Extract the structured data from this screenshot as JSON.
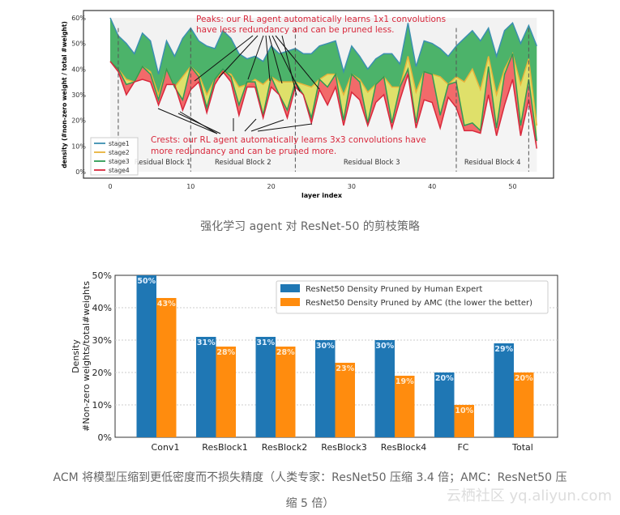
{
  "chart_data": [
    {
      "type": "area",
      "title": "",
      "xlabel": "layer index",
      "ylabel": "density (#non-zero weight / total #weight)",
      "xlim": [
        0,
        53
      ],
      "ylim": [
        0,
        60
      ],
      "xticks": [
        "0",
        "10",
        "20",
        "30",
        "40",
        "50"
      ],
      "yticks": [
        "0%",
        "10%",
        "20%",
        "30%",
        "40%",
        "50%",
        "60%"
      ],
      "legend": {
        "placement": "bottom-left",
        "entries": [
          "stage1",
          "stage2",
          "stage3",
          "stage4"
        ]
      },
      "colors": {
        "stage1": "#3b8fb0",
        "stage2": "#e8b33a",
        "stage3": "#2f9b54",
        "stage4": "#d8283c",
        "fill_green": "#4cb36a",
        "fill_yellow": "#dfe06a",
        "fill_red": "#f26a6a"
      },
      "series": [
        {
          "name": "stage1",
          "values": [
            60,
            53,
            50,
            46,
            54,
            51,
            38,
            51,
            45,
            52,
            56,
            51,
            49,
            48,
            55,
            52,
            46,
            44,
            45,
            43,
            49,
            46,
            47,
            48,
            46,
            46,
            49,
            50,
            51,
            39,
            49,
            45,
            40,
            44,
            46,
            46,
            42,
            58,
            41,
            51,
            50,
            48,
            45,
            49,
            52,
            55,
            51,
            56,
            45,
            55,
            58,
            50,
            57,
            49
          ]
        },
        {
          "name": "stage2",
          "values": [
            43,
            40,
            36,
            35,
            41,
            39,
            30,
            40,
            33,
            37,
            41,
            38,
            30,
            36,
            39,
            38,
            33,
            34,
            36,
            34,
            37,
            35,
            35,
            35,
            34,
            33,
            36,
            38,
            38,
            30,
            38,
            36,
            31,
            34,
            37,
            33,
            33,
            45,
            31,
            39,
            38,
            37,
            34,
            37,
            35,
            40,
            32,
            45,
            30,
            40,
            46,
            34,
            44,
            18
          ]
        },
        {
          "name": "stage3",
          "values": [
            43,
            40,
            34,
            35,
            41,
            38,
            28,
            40,
            33,
            28,
            41,
            37,
            25,
            36,
            40,
            37,
            26,
            35,
            35,
            22,
            37,
            30,
            24,
            35,
            30,
            21,
            36,
            33,
            38,
            20,
            38,
            35,
            19,
            34,
            37,
            19,
            33,
            40,
            19,
            39,
            38,
            22,
            34,
            35,
            18,
            19,
            16,
            41,
            17,
            38,
            46,
            18,
            36,
            12
          ]
        },
        {
          "name": "stage4",
          "values": [
            43,
            39,
            30,
            35,
            36,
            35,
            26,
            34,
            34,
            24,
            32,
            35,
            23,
            34,
            39,
            35,
            22,
            33,
            33,
            21,
            33,
            30,
            21,
            33,
            30,
            19,
            32,
            26,
            33,
            18,
            31,
            28,
            18,
            27,
            30,
            17,
            28,
            38,
            17,
            28,
            27,
            17,
            29,
            25,
            16,
            16,
            15,
            30,
            14,
            26,
            36,
            14,
            28,
            9
          ]
        }
      ],
      "block_dividers": [
        1,
        10,
        23,
        43,
        52
      ],
      "block_labels": [
        "Residual Block 1",
        "Residual Block 2",
        "Residual Block 3",
        "Residual Block 4"
      ],
      "annotations": {
        "peaks_1": "Peaks: our RL agent automatically learns 1x1 convolutions",
        "peaks_2": "have less redundancy and can be pruned less.",
        "crests_1": "Crests: our RL agent automatically learns 3x3 convolutions have",
        "crests_2": "more redundancy and can be pruned more."
      }
    },
    {
      "type": "bar",
      "title": "",
      "xlabel": "",
      "ylabel_1": "Density",
      "ylabel_2": "#Non-zero weights/total#weights",
      "ylim": [
        0,
        50
      ],
      "yticks": [
        "0%",
        "10%",
        "20%",
        "30%",
        "40%",
        "50%"
      ],
      "categories": [
        "Conv1",
        "ResBlock1",
        "ResBlock2",
        "ResBlock3",
        "ResBlock4",
        "FC",
        "Total"
      ],
      "legend": {
        "placement": "top-right"
      },
      "series": [
        {
          "name": "ResNet50 Density Pruned by Human Expert",
          "color": "#1f77b4",
          "values": [
            50,
            31,
            31,
            30,
            30,
            20,
            29
          ],
          "labels": [
            "50%",
            "31%",
            "31%",
            "30%",
            "30%",
            "20%",
            "29%"
          ]
        },
        {
          "name": "ResNet50 Density Pruned by AMC (the lower the better)",
          "color": "#ff8c0e",
          "values": [
            43,
            28,
            28,
            23,
            19,
            10,
            20
          ],
          "labels": [
            "43%",
            "28%",
            "28%",
            "23%",
            "19%",
            "10%",
            "20%"
          ]
        }
      ]
    }
  ],
  "captions": {
    "top": "强化学习 agent 对 ResNet-50 的剪枝策略",
    "bottom_1": "ACM 将模型压缩到更低密度而不损失精度（人类专家：ResNet50 压缩 3.4 倍；AMC：ResNet50 压",
    "bottom_2": "缩 5 倍）"
  },
  "watermark": "云栖社区 yq.aliyun.com"
}
